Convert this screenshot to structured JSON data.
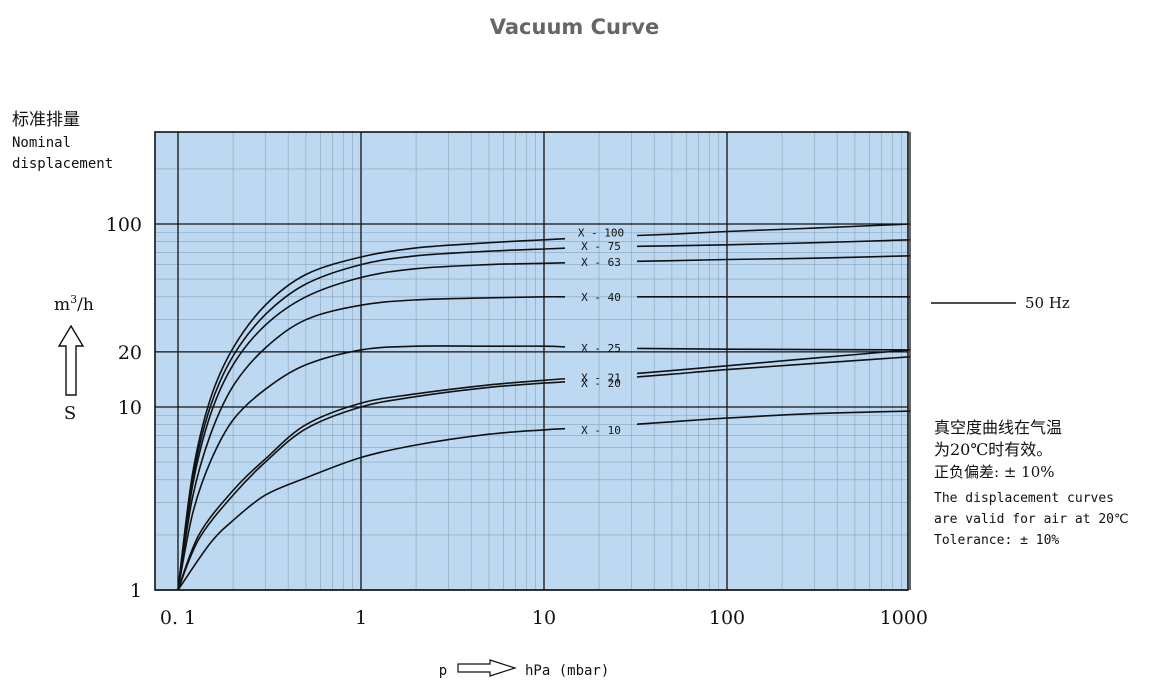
{
  "page": {
    "title": "Vacuum Curve"
  },
  "chart_data": {
    "type": "line",
    "title": "",
    "x_scale": "log",
    "y_scale": "log",
    "xlim": [
      0.1,
      1000
    ],
    "ylim": [
      1,
      200
    ],
    "x_ticks": [
      {
        "value": 0.1,
        "label": "0. 1"
      },
      {
        "value": 1,
        "label": "1"
      },
      {
        "value": 10,
        "label": "10"
      },
      {
        "value": 100,
        "label": "100"
      },
      {
        "value": 1000,
        "label": "1000"
      }
    ],
    "y_ticks": [
      {
        "value": 1,
        "label": "1"
      },
      {
        "value": 10,
        "label": "10"
      },
      {
        "value": 20,
        "label": "20"
      },
      {
        "value": 100,
        "label": "100"
      }
    ],
    "x_axis": {
      "symbol": "p",
      "unit": "hPa (mbar)"
    },
    "y_axis": {
      "label_cn": "标准排量",
      "label_en_line1": "Nominal",
      "label_en_line2": "displacement",
      "unit": "m³/h",
      "unit_base": "m",
      "unit_exp": "3",
      "unit_rest": "/h",
      "symbol": "S"
    },
    "grid": true,
    "background_color": "#bcd9f1",
    "line_color": "#111111",
    "series": [
      {
        "name": "X - 100",
        "label_y": 90,
        "points": [
          [
            0.1,
            1
          ],
          [
            0.12,
            4.3
          ],
          [
            0.15,
            11
          ],
          [
            0.2,
            21
          ],
          [
            0.3,
            36
          ],
          [
            0.5,
            53
          ],
          [
            1,
            66
          ],
          [
            2,
            74
          ],
          [
            5,
            79
          ],
          [
            10,
            82
          ],
          [
            20,
            85
          ],
          [
            50,
            88
          ],
          [
            100,
            91
          ],
          [
            300,
            95
          ],
          [
            1000,
            100
          ]
        ]
      },
      {
        "name": "X - 75",
        "label_y": 76,
        "points": [
          [
            0.1,
            1
          ],
          [
            0.12,
            4
          ],
          [
            0.15,
            10
          ],
          [
            0.2,
            19
          ],
          [
            0.3,
            32
          ],
          [
            0.5,
            47
          ],
          [
            1,
            60
          ],
          [
            2,
            67
          ],
          [
            5,
            71
          ],
          [
            10,
            73
          ],
          [
            20,
            75
          ],
          [
            50,
            76
          ],
          [
            100,
            77
          ],
          [
            300,
            79
          ],
          [
            1000,
            82
          ]
        ]
      },
      {
        "name": "X - 63",
        "label_y": 62,
        "points": [
          [
            0.1,
            1
          ],
          [
            0.12,
            3.7
          ],
          [
            0.15,
            9
          ],
          [
            0.2,
            17
          ],
          [
            0.3,
            28
          ],
          [
            0.5,
            40
          ],
          [
            1,
            51
          ],
          [
            2,
            57
          ],
          [
            5,
            60
          ],
          [
            10,
            61
          ],
          [
            20,
            62
          ],
          [
            50,
            63
          ],
          [
            100,
            64
          ],
          [
            300,
            65
          ],
          [
            1000,
            67
          ]
        ]
      },
      {
        "name": "X - 40",
        "label_y": 40,
        "points": [
          [
            0.1,
            1
          ],
          [
            0.12,
            3.2
          ],
          [
            0.15,
            7
          ],
          [
            0.2,
            13
          ],
          [
            0.3,
            21
          ],
          [
            0.5,
            30
          ],
          [
            1,
            36
          ],
          [
            2,
            38.5
          ],
          [
            5,
            39.5
          ],
          [
            10,
            40
          ],
          [
            20,
            40
          ],
          [
            100,
            40
          ],
          [
            1000,
            40
          ]
        ]
      },
      {
        "name": "X - 25",
        "label_y": 21,
        "points": [
          [
            0.1,
            1
          ],
          [
            0.12,
            2.6
          ],
          [
            0.15,
            5
          ],
          [
            0.2,
            8.5
          ],
          [
            0.3,
            12.5
          ],
          [
            0.5,
            17
          ],
          [
            1,
            20.5
          ],
          [
            2,
            21.5
          ],
          [
            5,
            21.5
          ],
          [
            10,
            21.5
          ],
          [
            20,
            21
          ],
          [
            100,
            20.7
          ],
          [
            1000,
            20.5
          ]
        ]
      },
      {
        "name": "X - 21",
        "label_y": 14.5,
        "points": [
          [
            0.1,
            1
          ],
          [
            0.13,
            2
          ],
          [
            0.2,
            3.5
          ],
          [
            0.3,
            5.2
          ],
          [
            0.5,
            8
          ],
          [
            1,
            10.5
          ],
          [
            2,
            11.8
          ],
          [
            5,
            13.2
          ],
          [
            10,
            14
          ],
          [
            20,
            14.7
          ],
          [
            50,
            15.8
          ],
          [
            100,
            16.8
          ],
          [
            300,
            18.5
          ],
          [
            1000,
            20.5
          ]
        ]
      },
      {
        "name": "X - 20",
        "label_y": 13.5,
        "points": [
          [
            0.1,
            1
          ],
          [
            0.13,
            1.9
          ],
          [
            0.2,
            3.3
          ],
          [
            0.3,
            5
          ],
          [
            0.5,
            7.6
          ],
          [
            1,
            10
          ],
          [
            2,
            11.4
          ],
          [
            5,
            12.8
          ],
          [
            10,
            13.5
          ],
          [
            20,
            14.1
          ],
          [
            50,
            15.1
          ],
          [
            100,
            16
          ],
          [
            300,
            17.3
          ],
          [
            1000,
            18.8
          ]
        ]
      },
      {
        "name": "X - 10",
        "label_y": 7.5,
        "points": [
          [
            0.1,
            1
          ],
          [
            0.15,
            1.8
          ],
          [
            0.2,
            2.4
          ],
          [
            0.3,
            3.3
          ],
          [
            0.5,
            4.1
          ],
          [
            1,
            5.3
          ],
          [
            2,
            6.2
          ],
          [
            5,
            7.1
          ],
          [
            10,
            7.5
          ],
          [
            20,
            7.8
          ],
          [
            50,
            8.3
          ],
          [
            100,
            8.7
          ],
          [
            300,
            9.2
          ],
          [
            1000,
            9.5
          ]
        ]
      }
    ],
    "annotations": {
      "freq_label": "50 Hz",
      "note_cn_line1": "真空度曲线在气温",
      "note_cn_line2": "为20℃时有效。",
      "note_cn_line3": "正负偏差: ± 10%",
      "note_en_line1": "The displacement curves",
      "note_en_line2": "are valid for air at 20℃",
      "note_en_line3": "Tolerance: ± 10%"
    }
  }
}
